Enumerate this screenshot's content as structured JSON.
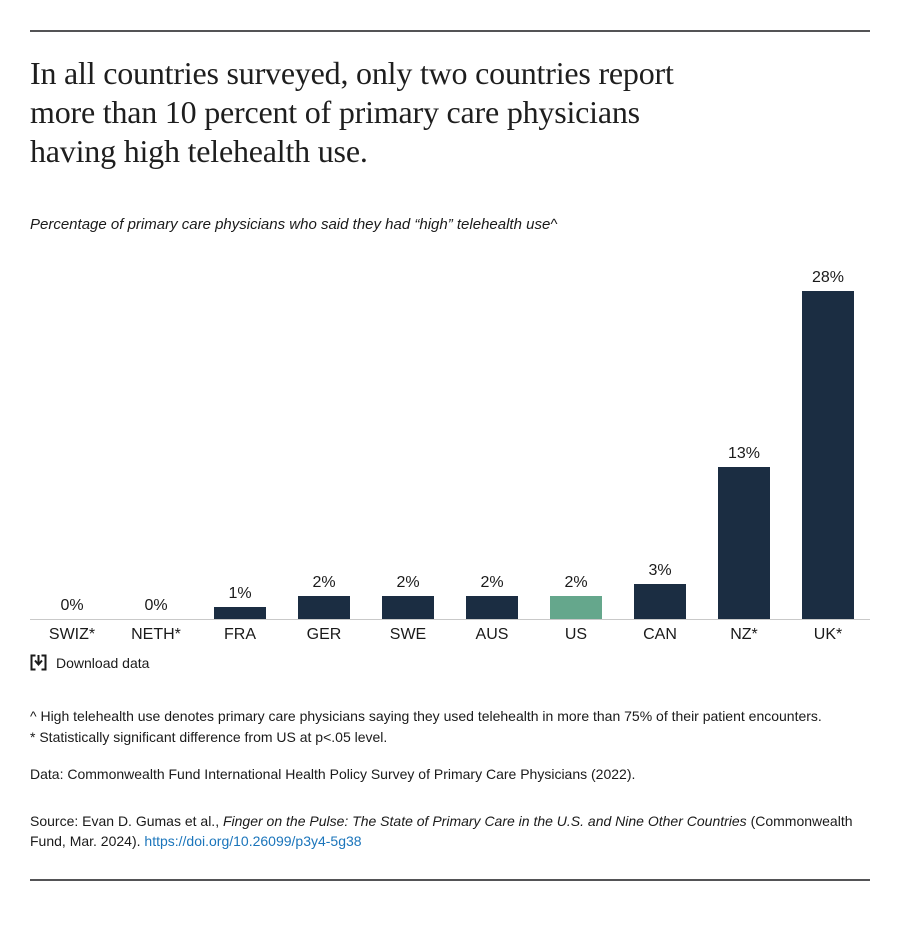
{
  "page": {
    "title": "In all countries surveyed, only two countries report\nmore than 10 percent of primary care physicians\nhaving high telehealth use.",
    "subtitle": "Percentage of primary care physicians who said they had “high” telehealth use^"
  },
  "chart_data": {
    "type": "bar",
    "categories": [
      "SWIZ*",
      "NETH*",
      "FRA",
      "GER",
      "SWE",
      "AUS",
      "US",
      "CAN",
      "NZ*",
      "UK*"
    ],
    "values": [
      0,
      0,
      1,
      2,
      2,
      2,
      2,
      3,
      13,
      28
    ],
    "value_labels": [
      "0%",
      "0%",
      "1%",
      "2%",
      "2%",
      "2%",
      "2%",
      "3%",
      "13%",
      "28%"
    ],
    "highlight_category": "US",
    "bar_color": "#1b2d42",
    "highlight_color": "#65a78c",
    "axis_line_color": "#c9c9c9",
    "ylim": [
      0,
      28
    ],
    "grid": false,
    "legend": false,
    "title": "In all countries surveyed, only two countries report more than 10 percent of primary care physicians having high telehealth use.",
    "subtitle": "Percentage of primary care physicians who said they had “high” telehealth use^",
    "xlabel": "",
    "ylabel": ""
  },
  "toolbar": {
    "download_label": "Download data"
  },
  "footnotes": {
    "line1": "^ High telehealth use denotes primary care physicians saying they used telehealth in more than 75% of their patient encounters.",
    "line2": "* Statistically significant difference from US at p<.05 level.",
    "data_line": "Data: Commonwealth Fund International Health Policy Survey of Primary Care Physicians (2022)."
  },
  "source": {
    "prefix": "Source: Evan D. Gumas et al., ",
    "title_italic": "Finger on the Pulse: The State of Primary Care in the U.S. and Nine Other Countries",
    "suffix": " (Commonwealth Fund, Mar. 2024). ",
    "link": "https://doi.org/10.26099/p3y4-5g38"
  }
}
